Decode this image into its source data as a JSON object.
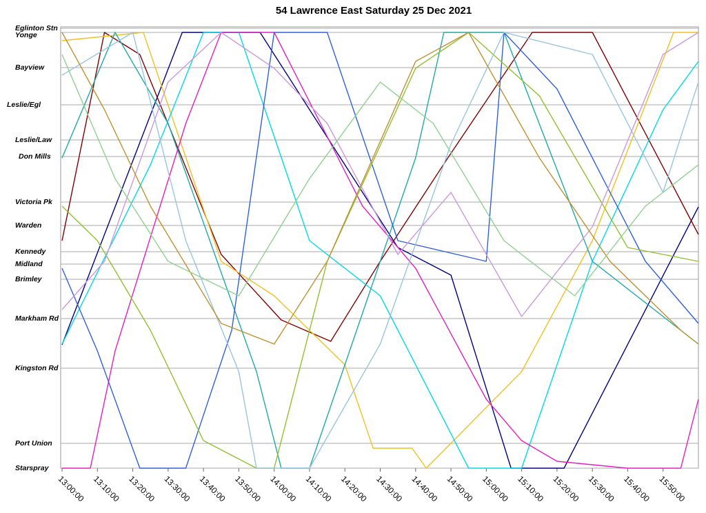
{
  "chart_data": {
    "type": "line",
    "title": "54 Lawrence East Saturday 25 Dec 2021",
    "xlim": [
      0,
      180
    ],
    "ylim": [
      0,
      638
    ],
    "grid": true,
    "xticks": [
      {
        "value": 0,
        "label": "13:00:00"
      },
      {
        "value": 10,
        "label": "13:10:00"
      },
      {
        "value": 20,
        "label": "13:20:00"
      },
      {
        "value": 30,
        "label": "13:30:00"
      },
      {
        "value": 40,
        "label": "13:40:00"
      },
      {
        "value": 50,
        "label": "13:50:00"
      },
      {
        "value": 60,
        "label": "14:00:00"
      },
      {
        "value": 70,
        "label": "14:10:00"
      },
      {
        "value": 80,
        "label": "14:20:00"
      },
      {
        "value": 90,
        "label": "14:30:00"
      },
      {
        "value": 100,
        "label": "14:40:00"
      },
      {
        "value": 110,
        "label": "14:50:00"
      },
      {
        "value": 120,
        "label": "15:00:00"
      },
      {
        "value": 130,
        "label": "15:10:00"
      },
      {
        "value": 140,
        "label": "15:20:00"
      },
      {
        "value": 150,
        "label": "15:30:00"
      },
      {
        "value": 160,
        "label": "15:40:00"
      },
      {
        "value": 170,
        "label": "15:50:00"
      }
    ],
    "yticks": [
      {
        "value": 638,
        "label": "Eglinton Stn"
      },
      {
        "value": 632,
        "label": "Yonge"
      },
      {
        "value": 581,
        "label": "Bayview"
      },
      {
        "value": 527,
        "label": "Leslie/Egl"
      },
      {
        "value": 476,
        "label": "Leslie/Law"
      },
      {
        "value": 452,
        "label": "Don Mills"
      },
      {
        "value": 386,
        "label": "Victoria Pk"
      },
      {
        "value": 352,
        "label": "Warden"
      },
      {
        "value": 314,
        "label": "Kennedy"
      },
      {
        "value": 296,
        "label": "Midland"
      },
      {
        "value": 274,
        "label": "Brimley"
      },
      {
        "value": 217,
        "label": "Markham Rd"
      },
      {
        "value": 145,
        "label": "Kingston Rd"
      },
      {
        "value": 36,
        "label": "Port Union"
      },
      {
        "value": 0,
        "label": "Starspray"
      }
    ],
    "series": [
      {
        "color": "#000080",
        "x": [
          0,
          34,
          56,
          95,
          110,
          127,
          142,
          180
        ],
        "values": [
          179,
          632,
          632,
          320,
          280,
          0,
          0,
          379
        ]
      },
      {
        "color": "#800000",
        "x": [
          0,
          12,
          22,
          45,
          62,
          76,
          90,
          109,
          133,
          150,
          180
        ],
        "values": [
          330,
          632,
          600,
          310,
          215,
          184,
          300,
          449,
          632,
          632,
          339
        ]
      },
      {
        "color": "#f0c020",
        "x": [
          0,
          23,
          45,
          60,
          80,
          88,
          99,
          103,
          130,
          150,
          173,
          180
        ],
        "values": [
          620,
          632,
          300,
          250,
          150,
          29,
          29,
          0,
          140,
          330,
          632,
          632
        ]
      },
      {
        "color": "#00d8e8",
        "x": [
          0,
          25,
          40,
          50,
          70,
          90,
          115,
          130,
          150,
          170,
          180
        ],
        "values": [
          180,
          440,
          632,
          632,
          330,
          250,
          0,
          0,
          300,
          520,
          590
        ]
      },
      {
        "color": "#20a8a8",
        "x": [
          0,
          15,
          30,
          55,
          62,
          70,
          100,
          108,
          125,
          150,
          180
        ],
        "values": [
          450,
          632,
          500,
          140,
          0,
          0,
          450,
          632,
          632,
          300,
          180
        ]
      },
      {
        "color": "#e020c0",
        "x": [
          0,
          8,
          15,
          35,
          45,
          60,
          85,
          100,
          120,
          130,
          140,
          160,
          175,
          180
        ],
        "values": [
          0,
          0,
          170,
          500,
          632,
          632,
          380,
          290,
          100,
          40,
          10,
          0,
          0,
          100
        ]
      },
      {
        "color": "#3060d8",
        "x": [
          0,
          10,
          22,
          35,
          48,
          60,
          75,
          95,
          120,
          125,
          140,
          165,
          180
        ],
        "values": [
          290,
          170,
          0,
          0,
          200,
          632,
          632,
          330,
          300,
          632,
          550,
          300,
          210
        ]
      },
      {
        "color": "#90c030",
        "x": [
          0,
          10,
          25,
          40,
          55,
          60,
          75,
          100,
          115,
          135,
          160,
          180
        ],
        "values": [
          380,
          330,
          200,
          40,
          0,
          0,
          300,
          580,
          632,
          540,
          320,
          300
        ]
      },
      {
        "color": "#98c4e0",
        "x": [
          0,
          20,
          35,
          50,
          55,
          70,
          90,
          110,
          125,
          150,
          170,
          180
        ],
        "values": [
          570,
          632,
          330,
          140,
          0,
          0,
          180,
          470,
          632,
          600,
          400,
          560
        ]
      },
      {
        "color": "#c898e0",
        "x": [
          0,
          12,
          30,
          45,
          60,
          75,
          95,
          110,
          130,
          150,
          170,
          180
        ],
        "values": [
          230,
          300,
          560,
          632,
          580,
          500,
          310,
          400,
          220,
          350,
          600,
          632
        ]
      },
      {
        "color": "#c09030",
        "x": [
          0,
          12,
          25,
          45,
          60,
          75,
          100,
          115,
          135,
          155,
          175,
          180
        ],
        "values": [
          632,
          520,
          380,
          210,
          180,
          300,
          590,
          632,
          450,
          300,
          200,
          180
        ]
      },
      {
        "color": "#90d090",
        "x": [
          0,
          15,
          30,
          50,
          70,
          90,
          105,
          125,
          145,
          165,
          180
        ],
        "values": [
          600,
          420,
          300,
          250,
          420,
          560,
          500,
          330,
          250,
          380,
          440
        ]
      }
    ]
  }
}
